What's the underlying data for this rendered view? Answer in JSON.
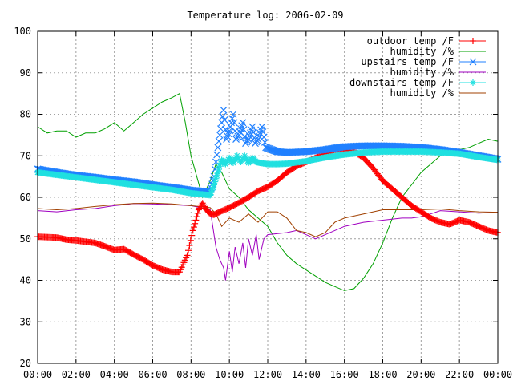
{
  "chart_data": {
    "type": "line",
    "title": "Temperature log: 2006-02-09",
    "xlabel": "",
    "ylabel": "",
    "x_unit": "hours",
    "xlim": [
      0,
      24
    ],
    "ylim": [
      20,
      100
    ],
    "x_ticks": [
      {
        "value": 0,
        "label": "00:00"
      },
      {
        "value": 2,
        "label": "02:00"
      },
      {
        "value": 4,
        "label": "04:00"
      },
      {
        "value": 6,
        "label": "06:00"
      },
      {
        "value": 8,
        "label": "08:00"
      },
      {
        "value": 10,
        "label": "10:00"
      },
      {
        "value": 12,
        "label": "12:00"
      },
      {
        "value": 14,
        "label": "14:00"
      },
      {
        "value": 16,
        "label": "16:00"
      },
      {
        "value": 18,
        "label": "18:00"
      },
      {
        "value": 20,
        "label": "20:00"
      },
      {
        "value": 22,
        "label": "22:00"
      },
      {
        "value": 24,
        "label": "00:00"
      }
    ],
    "y_ticks": [
      20,
      30,
      40,
      50,
      60,
      70,
      80,
      90,
      100
    ],
    "grid": true,
    "legend_position": "top-right",
    "series": [
      {
        "name": "outdoor temp /F",
        "color": "#ff0000",
        "marker": "plus",
        "style": "points",
        "points": [
          [
            0,
            50.5
          ],
          [
            1,
            50.3
          ],
          [
            1.5,
            49.8
          ],
          [
            2,
            49.6
          ],
          [
            3,
            49
          ],
          [
            3.5,
            48.2
          ],
          [
            4,
            47.3
          ],
          [
            4.5,
            47.5
          ],
          [
            5,
            46.2
          ],
          [
            5.5,
            45
          ],
          [
            6,
            43.6
          ],
          [
            6.5,
            42.6
          ],
          [
            7,
            42
          ],
          [
            7.4,
            42
          ],
          [
            7.8,
            46
          ],
          [
            8.1,
            52
          ],
          [
            8.4,
            57
          ],
          [
            8.6,
            58.6
          ],
          [
            8.8,
            57
          ],
          [
            9,
            56
          ],
          [
            9.2,
            55.8
          ],
          [
            9.5,
            56.5
          ],
          [
            10,
            57.5
          ],
          [
            10.5,
            58.7
          ],
          [
            11,
            60
          ],
          [
            11.5,
            61.5
          ],
          [
            12,
            62.5
          ],
          [
            12.5,
            64
          ],
          [
            13,
            66
          ],
          [
            13.5,
            67.5
          ],
          [
            14,
            68.5
          ],
          [
            14.5,
            69.5
          ],
          [
            15,
            70.5
          ],
          [
            15.5,
            71.5
          ],
          [
            16,
            71.5
          ],
          [
            16.5,
            71
          ],
          [
            17,
            69.5
          ],
          [
            17.5,
            67
          ],
          [
            18,
            64
          ],
          [
            18.5,
            62
          ],
          [
            19,
            60
          ],
          [
            19.5,
            58
          ],
          [
            20,
            56.5
          ],
          [
            20.5,
            55
          ],
          [
            21,
            54
          ],
          [
            21.5,
            53.5
          ],
          [
            22,
            54.5
          ],
          [
            22.5,
            54
          ],
          [
            23,
            53
          ],
          [
            23.5,
            52
          ],
          [
            24,
            51.5
          ]
        ]
      },
      {
        "name": "humidity /%",
        "color": "#00a000",
        "marker": "none",
        "style": "line",
        "points": [
          [
            0,
            77
          ],
          [
            0.5,
            75.5
          ],
          [
            1,
            76
          ],
          [
            1.5,
            76
          ],
          [
            2,
            74.5
          ],
          [
            2.5,
            75.5
          ],
          [
            3,
            75.5
          ],
          [
            3.5,
            76.5
          ],
          [
            4,
            78
          ],
          [
            4.5,
            76
          ],
          [
            5,
            78
          ],
          [
            5.5,
            80
          ],
          [
            6,
            81.5
          ],
          [
            6.5,
            83
          ],
          [
            7,
            84
          ],
          [
            7.4,
            85
          ],
          [
            7.7,
            78
          ],
          [
            8,
            70
          ],
          [
            8.3,
            65
          ],
          [
            8.6,
            60
          ],
          [
            8.8,
            62
          ],
          [
            9,
            64
          ],
          [
            9.3,
            68
          ],
          [
            9.6,
            66
          ],
          [
            10,
            62
          ],
          [
            10.5,
            60
          ],
          [
            11,
            57
          ],
          [
            11.5,
            55
          ],
          [
            12,
            53
          ],
          [
            12.5,
            49
          ],
          [
            13,
            46
          ],
          [
            13.5,
            44
          ],
          [
            14,
            42.5
          ],
          [
            14.5,
            41
          ],
          [
            15,
            39.5
          ],
          [
            15.5,
            38.5
          ],
          [
            16,
            37.5
          ],
          [
            16.5,
            38
          ],
          [
            17,
            40.5
          ],
          [
            17.5,
            44
          ],
          [
            18,
            49
          ],
          [
            18.5,
            55
          ],
          [
            19,
            60
          ],
          [
            19.5,
            63
          ],
          [
            20,
            66
          ],
          [
            20.5,
            68
          ],
          [
            21,
            70
          ],
          [
            21.5,
            71
          ],
          [
            22,
            71.5
          ],
          [
            22.5,
            72
          ],
          [
            23,
            73
          ],
          [
            23.5,
            74
          ],
          [
            24,
            73.5
          ]
        ]
      },
      {
        "name": "upstairs temp /F",
        "color": "#2080ff",
        "marker": "x",
        "style": "points",
        "points": [
          [
            0,
            66.8
          ],
          [
            1,
            66
          ],
          [
            2,
            65.3
          ],
          [
            3,
            64.8
          ],
          [
            4,
            64.2
          ],
          [
            5,
            63.7
          ],
          [
            6,
            63
          ],
          [
            7,
            62.4
          ],
          [
            8,
            61.7
          ],
          [
            9,
            61.3
          ],
          [
            9.2,
            65
          ],
          [
            9.4,
            72
          ],
          [
            9.6,
            78
          ],
          [
            9.7,
            81
          ],
          [
            9.85,
            74
          ],
          [
            10,
            76
          ],
          [
            10.2,
            80
          ],
          [
            10.35,
            74
          ],
          [
            10.5,
            75
          ],
          [
            10.7,
            78
          ],
          [
            10.85,
            73
          ],
          [
            11,
            74
          ],
          [
            11.2,
            77
          ],
          [
            11.35,
            73
          ],
          [
            11.5,
            74
          ],
          [
            11.7,
            77
          ],
          [
            11.9,
            72
          ],
          [
            12.2,
            71.5
          ],
          [
            12.5,
            71
          ],
          [
            13,
            70.8
          ],
          [
            14,
            71
          ],
          [
            15,
            71.5
          ],
          [
            16,
            72.2
          ],
          [
            17,
            72.4
          ],
          [
            18,
            72.4
          ],
          [
            19,
            72.3
          ],
          [
            20,
            72
          ],
          [
            21,
            71.5
          ],
          [
            22,
            70.8
          ],
          [
            23,
            70
          ],
          [
            24,
            69.2
          ]
        ]
      },
      {
        "name": "humidity /%",
        "color": "#a000c0",
        "marker": "none",
        "style": "line",
        "points": [
          [
            0,
            56.8
          ],
          [
            1,
            56.5
          ],
          [
            2,
            57
          ],
          [
            3,
            57.3
          ],
          [
            4,
            58
          ],
          [
            4.5,
            58.2
          ],
          [
            5,
            58.5
          ],
          [
            6,
            58.4
          ],
          [
            7,
            58.2
          ],
          [
            8,
            58
          ],
          [
            8.5,
            57.5
          ],
          [
            9,
            57
          ],
          [
            9.3,
            48
          ],
          [
            9.5,
            45
          ],
          [
            9.7,
            43
          ],
          [
            9.8,
            40
          ],
          [
            10,
            47
          ],
          [
            10.15,
            42
          ],
          [
            10.3,
            48
          ],
          [
            10.5,
            44
          ],
          [
            10.7,
            49
          ],
          [
            10.85,
            43
          ],
          [
            11,
            50
          ],
          [
            11.2,
            46
          ],
          [
            11.4,
            51
          ],
          [
            11.55,
            45
          ],
          [
            11.8,
            50
          ],
          [
            12,
            51
          ],
          [
            13,
            51.5
          ],
          [
            13.5,
            52
          ],
          [
            14,
            51
          ],
          [
            14.5,
            50
          ],
          [
            15,
            51
          ],
          [
            16,
            53
          ],
          [
            17,
            54
          ],
          [
            18,
            54.5
          ],
          [
            19,
            55
          ],
          [
            19.5,
            55
          ],
          [
            20,
            55.3
          ],
          [
            20.5,
            56
          ],
          [
            21,
            56.8
          ],
          [
            22,
            56.5
          ],
          [
            23,
            56.2
          ],
          [
            24,
            56.4
          ]
        ]
      },
      {
        "name": "downstairs temp /F",
        "color": "#20e0e0",
        "marker": "star",
        "style": "points",
        "points": [
          [
            0,
            66
          ],
          [
            1,
            65.4
          ],
          [
            2,
            64.8
          ],
          [
            3,
            64.2
          ],
          [
            4,
            63.6
          ],
          [
            5,
            63
          ],
          [
            6,
            62.4
          ],
          [
            7,
            61.8
          ],
          [
            8,
            61
          ],
          [
            9,
            60.5
          ],
          [
            9.2,
            63
          ],
          [
            9.4,
            66
          ],
          [
            9.6,
            69
          ],
          [
            9.8,
            68
          ],
          [
            10,
            69.5
          ],
          [
            10.2,
            68.3
          ],
          [
            10.4,
            70
          ],
          [
            10.6,
            68.5
          ],
          [
            10.8,
            70
          ],
          [
            11,
            68.3
          ],
          [
            11.2,
            69.5
          ],
          [
            11.4,
            68.5
          ],
          [
            11.6,
            68.3
          ],
          [
            12,
            68
          ],
          [
            12.5,
            68
          ],
          [
            13,
            68.1
          ],
          [
            14,
            68.7
          ],
          [
            15,
            69.6
          ],
          [
            16,
            70.3
          ],
          [
            17,
            70.8
          ],
          [
            18,
            71
          ],
          [
            19,
            71
          ],
          [
            20,
            71
          ],
          [
            21,
            70.8
          ],
          [
            22,
            70.5
          ],
          [
            23,
            69.7
          ],
          [
            24,
            69
          ]
        ]
      },
      {
        "name": "humidity /%",
        "color": "#a04000",
        "marker": "none",
        "style": "line",
        "points": [
          [
            0,
            57.3
          ],
          [
            1,
            57
          ],
          [
            2,
            57.3
          ],
          [
            3,
            57.8
          ],
          [
            4,
            58.2
          ],
          [
            5,
            58.5
          ],
          [
            6,
            58.6
          ],
          [
            7,
            58.4
          ],
          [
            8,
            58
          ],
          [
            9,
            57.5
          ],
          [
            9.3,
            56
          ],
          [
            9.6,
            53
          ],
          [
            10,
            55
          ],
          [
            10.5,
            54
          ],
          [
            11,
            56
          ],
          [
            11.5,
            54
          ],
          [
            12,
            56.5
          ],
          [
            12.5,
            56.5
          ],
          [
            13,
            55
          ],
          [
            13.5,
            52
          ],
          [
            14,
            51.5
          ],
          [
            14.5,
            50.5
          ],
          [
            15,
            51.5
          ],
          [
            15.5,
            54
          ],
          [
            16,
            55
          ],
          [
            17,
            56
          ],
          [
            18,
            57
          ],
          [
            19,
            57
          ],
          [
            20,
            57
          ],
          [
            21,
            57.2
          ],
          [
            22,
            56.8
          ],
          [
            23,
            56.5
          ],
          [
            24,
            56.4
          ]
        ]
      }
    ]
  }
}
